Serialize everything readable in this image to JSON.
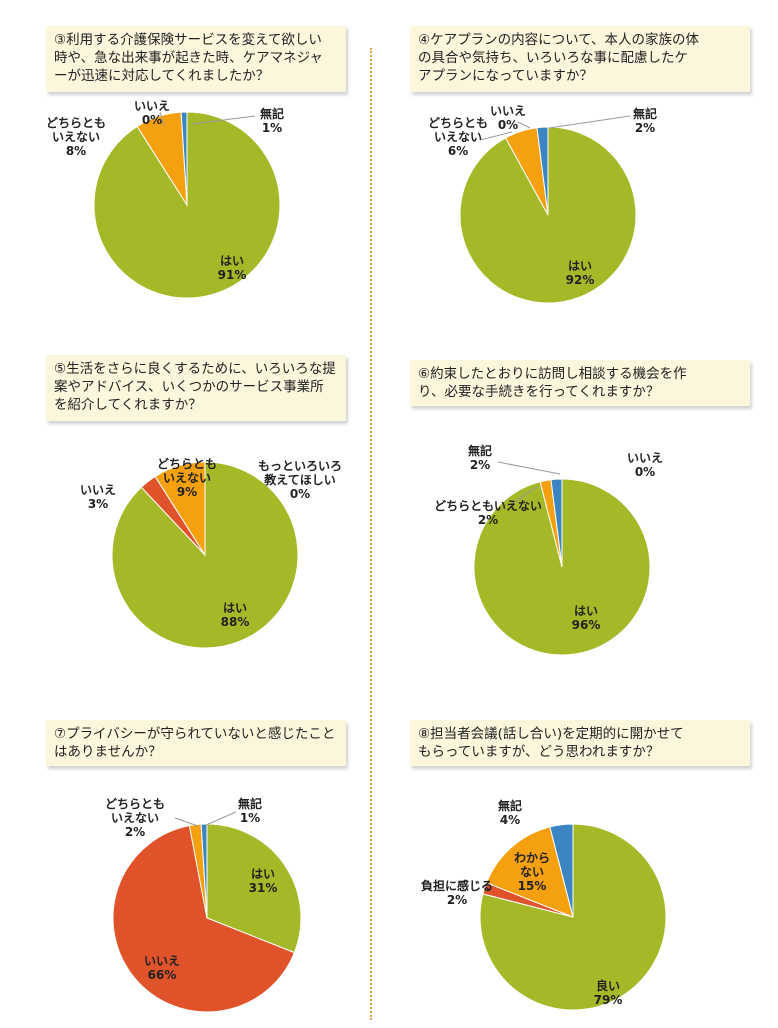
{
  "colors": {
    "green": "#a5b828",
    "orange": "#f5a00f",
    "blue": "#3b86c2",
    "red": "#e0532a",
    "question_bg": "#fbf6dc",
    "divider": "#e0a24a"
  },
  "chart_data": [
    {
      "type": "pie",
      "title": "③利用する介護保険サービスを変えて欲しい\n時や、急な出来事が起きた時、ケアマネジャ\nーが迅速に対応してくれましたか？",
      "slices": [
        {
          "name": "はい",
          "value": 91,
          "label": "91%",
          "color": "#a5b828"
        },
        {
          "name": "どちらとも\nいえない",
          "value": 8,
          "label": "8%",
          "color": "#f5a00f"
        },
        {
          "name": "いいえ",
          "value": 0,
          "label": "0%",
          "color": "#e0532a"
        },
        {
          "name": "無記",
          "value": 1,
          "label": "1%",
          "color": "#3b86c2"
        }
      ]
    },
    {
      "type": "pie",
      "title": "④ケアプランの内容について、本人の家族の体\nの具合や気持ち、いろいろな事に配慮したケ\nアプランになっていますか？",
      "slices": [
        {
          "name": "はい",
          "value": 92,
          "label": "92%",
          "color": "#a5b828"
        },
        {
          "name": "どちらとも\nいえない",
          "value": 6,
          "label": "6%",
          "color": "#f5a00f"
        },
        {
          "name": "いいえ",
          "value": 0,
          "label": "0%",
          "color": "#e0532a"
        },
        {
          "name": "無記",
          "value": 2,
          "label": "2%",
          "color": "#3b86c2"
        }
      ]
    },
    {
      "type": "pie",
      "title": "⑤生活をさらに良くするために、いろいろな提\n案やアドバイス、いくつかのサービス事業所\nを紹介してくれますか？",
      "slices": [
        {
          "name": "はい",
          "value": 88,
          "label": "88%",
          "color": "#a5b828"
        },
        {
          "name": "いいえ",
          "value": 3,
          "label": "3%",
          "color": "#e0532a"
        },
        {
          "name": "どちらとも\nいえない",
          "value": 9,
          "label": "9%",
          "color": "#f5a00f"
        },
        {
          "name": "もっといろいろ\n教えてほしい",
          "value": 0,
          "label": "0%",
          "color": "#3b86c2"
        }
      ]
    },
    {
      "type": "pie",
      "title": "⑥約束したとおりに訪問し相談する機会を作\nり、必要な手続きを行ってくれますか？",
      "slices": [
        {
          "name": "はい",
          "value": 96,
          "label": "96%",
          "color": "#a5b828"
        },
        {
          "name": "どちらともいえない",
          "value": 2,
          "label": "2%",
          "color": "#f5a00f"
        },
        {
          "name": "無記",
          "value": 2,
          "label": "2%",
          "color": "#3b86c2"
        },
        {
          "name": "いいえ",
          "value": 0,
          "label": "0%",
          "color": "#e0532a"
        }
      ]
    },
    {
      "type": "pie",
      "title": "⑦プライバシーが守られていないと感じたこと\nはありませんか？",
      "slices": [
        {
          "name": "はい",
          "value": 31,
          "label": "31%",
          "color": "#a5b828"
        },
        {
          "name": "いいえ",
          "value": 66,
          "label": "66%",
          "color": "#e0532a"
        },
        {
          "name": "どちらとも\nいえない",
          "value": 2,
          "label": "2%",
          "color": "#f5a00f"
        },
        {
          "name": "無記",
          "value": 1,
          "label": "1%",
          "color": "#3b86c2"
        }
      ]
    },
    {
      "type": "pie",
      "title": "⑧担当者会議(話し合い)を定期的に開かせて\nもらっていますが、どう思われますか？",
      "slices": [
        {
          "name": "良い",
          "value": 79,
          "label": "79%",
          "color": "#a5b828"
        },
        {
          "name": "負担に感じる",
          "value": 2,
          "label": "2%",
          "color": "#e0532a"
        },
        {
          "name": "わから\nない",
          "value": 15,
          "label": "15%",
          "color": "#f5a00f"
        },
        {
          "name": "無記",
          "value": 4,
          "label": "4%",
          "color": "#3b86c2"
        }
      ]
    }
  ]
}
